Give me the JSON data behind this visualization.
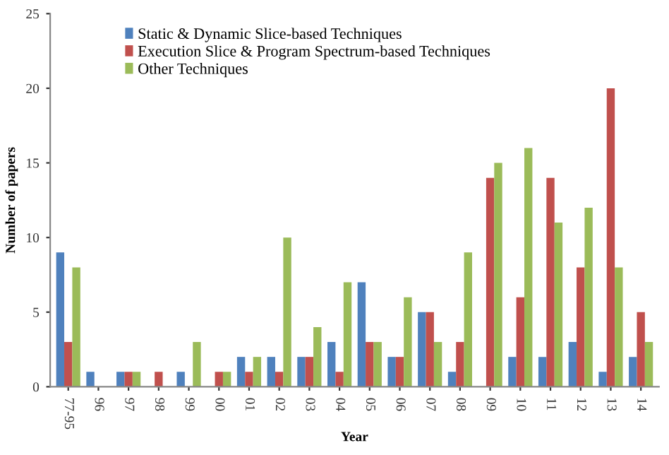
{
  "chart_data": {
    "type": "bar",
    "xlabel": "Year",
    "ylabel": "Number of papers",
    "categories": [
      "77-95",
      "96",
      "97",
      "98",
      "99",
      "00",
      "01",
      "02",
      "03",
      "04",
      "05",
      "06",
      "07",
      "08",
      "09",
      "10",
      "11",
      "12",
      "13",
      "14"
    ],
    "series": [
      {
        "name": "Static & Dynamic Slice-based Techniques",
        "color": "#4f81bd",
        "values": [
          9,
          1,
          1,
          0,
          1,
          0,
          2,
          2,
          2,
          3,
          7,
          2,
          5,
          1,
          0,
          2,
          2,
          3,
          1,
          2
        ]
      },
      {
        "name": "Execution Slice & Program Spectrum-based Techniques",
        "color": "#c0504d",
        "values": [
          3,
          0,
          1,
          1,
          0,
          1,
          1,
          1,
          2,
          1,
          3,
          2,
          5,
          3,
          14,
          6,
          14,
          8,
          20,
          5
        ]
      },
      {
        "name": "Other Techniques",
        "color": "#9bbb59",
        "values": [
          8,
          0,
          1,
          0,
          3,
          1,
          2,
          10,
          4,
          7,
          3,
          6,
          3,
          9,
          15,
          16,
          11,
          12,
          8,
          3
        ]
      }
    ],
    "ylim": [
      0,
      25
    ],
    "yticks": [
      0,
      5,
      10,
      15,
      20,
      25
    ],
    "grid": false,
    "legend": "top left"
  }
}
